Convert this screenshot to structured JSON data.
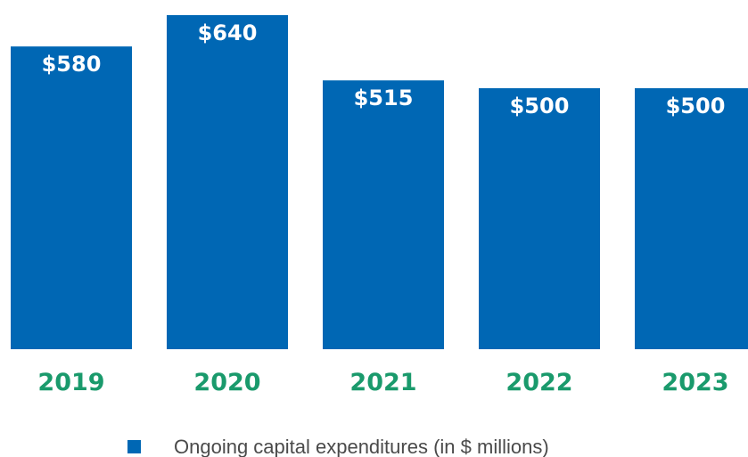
{
  "colors": {
    "bar": "#0067b4",
    "bar_label": "#ffffff",
    "tick_label": "#1a9a6c",
    "legend_text": "#4a4a4a"
  },
  "chart_data": {
    "type": "bar",
    "categories": [
      "2019",
      "2020",
      "2021",
      "2022",
      "2023"
    ],
    "values": [
      580,
      640,
      515,
      500,
      500
    ],
    "data_labels": [
      "$580",
      "$640",
      "$515",
      "$500",
      "$500"
    ],
    "series": [
      {
        "name": "Ongoing capital expenditures (in $ millions)",
        "values": [
          580,
          640,
          515,
          500,
          500
        ]
      }
    ],
    "title": "",
    "xlabel": "",
    "ylabel": "",
    "grid": false,
    "legend_position": "bottom-center"
  }
}
